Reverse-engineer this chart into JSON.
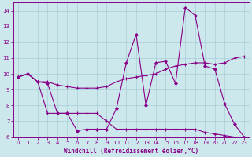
{
  "xlabel": "Windchill (Refroidissement éolien,°C)",
  "background_color": "#cce8ec",
  "line_color": "#880088",
  "xlim": [
    -0.5,
    23.5
  ],
  "ylim": [
    6,
    14.5
  ],
  "yticks": [
    6,
    7,
    8,
    9,
    10,
    11,
    12,
    13,
    14
  ],
  "xticks": [
    0,
    1,
    2,
    3,
    4,
    5,
    6,
    7,
    8,
    9,
    10,
    11,
    12,
    13,
    14,
    15,
    16,
    17,
    18,
    19,
    20,
    21,
    22,
    23
  ],
  "line_top_x": [
    0,
    1,
    2,
    3,
    4,
    5,
    6,
    7,
    8,
    9,
    10,
    11,
    12,
    13,
    14,
    15,
    16,
    17,
    18,
    19,
    20,
    21,
    22,
    23
  ],
  "line_top_y": [
    9.8,
    10.0,
    9.5,
    9.5,
    9.3,
    9.2,
    9.1,
    9.1,
    9.1,
    9.2,
    9.5,
    9.7,
    9.8,
    9.9,
    10.0,
    10.3,
    10.5,
    10.6,
    10.7,
    10.7,
    10.6,
    10.7,
    11.0,
    11.1
  ],
  "line_spike_x": [
    0,
    1,
    2,
    3,
    4,
    5,
    6,
    7,
    8,
    9,
    10,
    11,
    12,
    13,
    14,
    15,
    16,
    17,
    18,
    19,
    20,
    21,
    22,
    23
  ],
  "line_spike_y": [
    9.8,
    10.0,
    9.5,
    9.4,
    7.5,
    7.5,
    6.4,
    6.5,
    6.5,
    6.5,
    7.8,
    10.7,
    12.5,
    8.0,
    10.7,
    10.8,
    9.4,
    14.2,
    13.7,
    10.5,
    10.3,
    8.1,
    6.8,
    6.0
  ],
  "line_bot_x": [
    0,
    1,
    2,
    3,
    4,
    5,
    6,
    7,
    8,
    9,
    10,
    11,
    12,
    13,
    14,
    15,
    16,
    17,
    18,
    19,
    20,
    21,
    22,
    23
  ],
  "line_bot_y": [
    9.8,
    10.0,
    9.5,
    7.5,
    7.5,
    7.5,
    7.5,
    7.5,
    7.5,
    7.0,
    6.5,
    6.5,
    6.5,
    6.5,
    6.5,
    6.5,
    6.5,
    6.5,
    6.5,
    6.3,
    6.2,
    6.1,
    6.0,
    5.9
  ]
}
